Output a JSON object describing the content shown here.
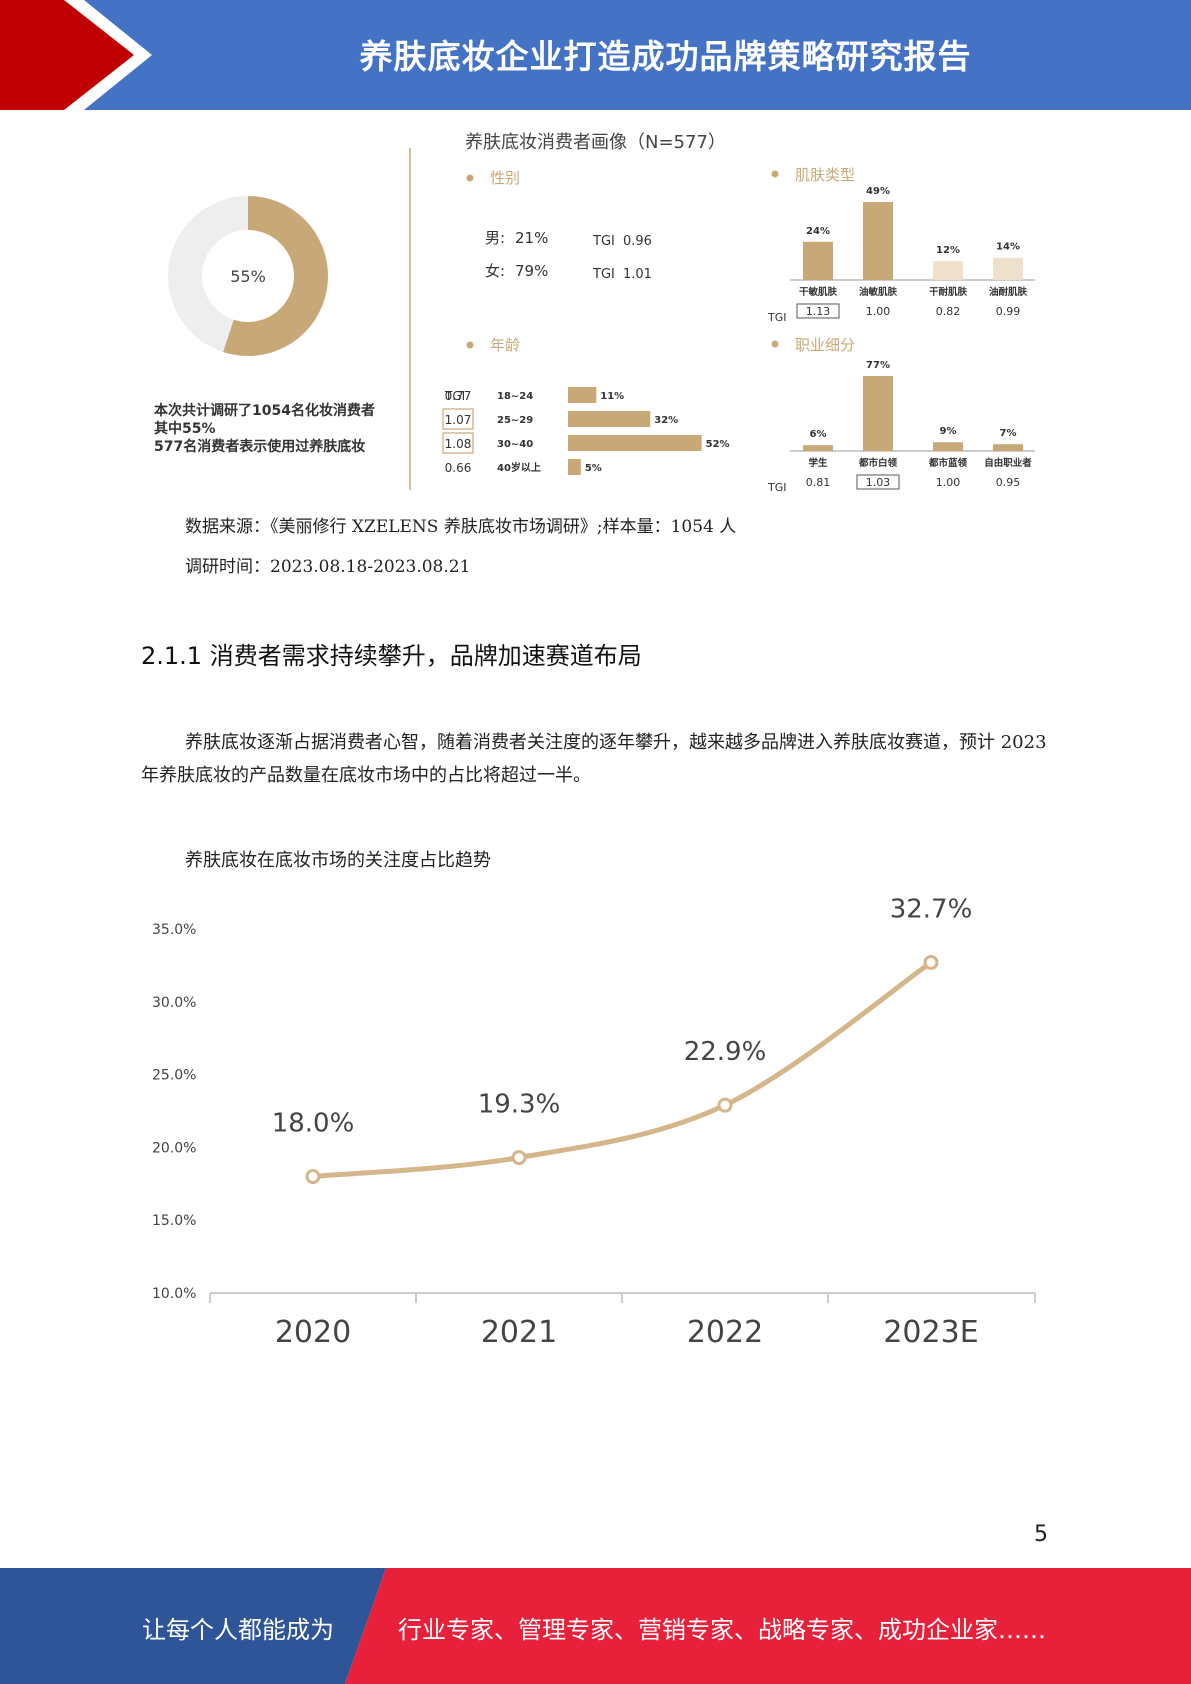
{
  "header": {
    "title": "养肤底妆企业打造成功品牌策略研究报告",
    "bg_color": "#4472c4",
    "accent_color": "#c00000"
  },
  "infographic": {
    "title": "养肤底妆消费者画像（N=577）",
    "donut": {
      "value": 55,
      "label": "55%",
      "color": "#c9a878",
      "track_color": "#eeeeee"
    },
    "notes": [
      "本次共计调研了1054名化妆消费者",
      "其中55%",
      "577名消费者表示使用过养肤底妆"
    ],
    "gender": {
      "heading": "性别",
      "rows": [
        {
          "label": "男:",
          "value": "21%",
          "tgi_label": "TGI",
          "tgi": "0.96"
        },
        {
          "label": "女:",
          "value": "79%",
          "tgi_label": "TGI",
          "tgi": "1.01"
        }
      ]
    },
    "age": {
      "heading": "年龄",
      "tgi_label": "TGI",
      "rows": [
        {
          "tgi": "0.77",
          "label": "18~24",
          "value": 11,
          "value_label": "11%"
        },
        {
          "tgi": "1.07",
          "label": "25~29",
          "value": 32,
          "value_label": "32%"
        },
        {
          "tgi": "1.08",
          "label": "30~40",
          "value": 52,
          "value_label": "52%"
        },
        {
          "tgi": "0.66",
          "label": "40岁以上",
          "value": 5,
          "value_label": "5%"
        }
      ]
    },
    "skin": {
      "heading": "肌肤类型",
      "tgi_label": "TGI",
      "bars": [
        {
          "label": "干敏肌肤",
          "value": 24,
          "value_label": "24%",
          "tgi": "1.13"
        },
        {
          "label": "油敏肌肤",
          "value": 49,
          "value_label": "49%",
          "tgi": "1.00"
        },
        {
          "label": "干耐肌肤",
          "value": 12,
          "value_label": "12%",
          "tgi": "0.82"
        },
        {
          "label": "油耐肌肤",
          "value": 14,
          "value_label": "14%",
          "tgi": "0.99"
        }
      ]
    },
    "job": {
      "heading": "职业细分",
      "tgi_label": "TGI",
      "bars": [
        {
          "label": "学生",
          "value": 6,
          "value_label": "6%",
          "tgi": "0.81"
        },
        {
          "label": "都市白领",
          "value": 77,
          "value_label": "77%",
          "tgi": "1.03"
        },
        {
          "label": "都市蓝领",
          "value": 9,
          "value_label": "9%",
          "tgi": "1.00"
        },
        {
          "label": "自由职业者",
          "value": 7,
          "value_label": "7%",
          "tgi": "0.95"
        }
      ]
    }
  },
  "source": {
    "line1": "数据来源：《美丽修行 XZELENS 养肤底妆市场调研》;样本量：1054 人",
    "line2": "调研时间：2023.08.18-2023.08.21"
  },
  "section": {
    "title": "2.1.1 消费者需求持续攀升，品牌加速赛道布局"
  },
  "paragraph": "养肤底妆逐渐占据消费者心智，随着消费者关注度的逐年攀升，越来越多品牌进入养肤底妆赛道，预计 2023 年养肤底妆的产品数量在底妆市场中的占比将超过一半。",
  "chart_caption": "养肤底妆在底妆市场的关注度占比趋势",
  "chart_data": {
    "type": "line",
    "categories": [
      "2020",
      "2021",
      "2022",
      "2023E"
    ],
    "values": [
      18.0,
      19.3,
      22.9,
      32.7
    ],
    "value_labels": [
      "18.0%",
      "19.3%",
      "22.9%",
      "32.7%"
    ],
    "yticks": [
      "35.0%",
      "30.0%",
      "25.0%",
      "20.0%",
      "15.0%",
      "10.0%"
    ],
    "ylim": [
      10,
      35
    ],
    "grid": false,
    "color": "#d4b68a"
  },
  "page_number": "5",
  "footer": {
    "left_text": "让每个人都能成为",
    "right_text": "行业专家、管理专家、营销专家、战略专家、成功企业家……",
    "left_color": "#2e5597",
    "right_color": "#e8203a"
  }
}
